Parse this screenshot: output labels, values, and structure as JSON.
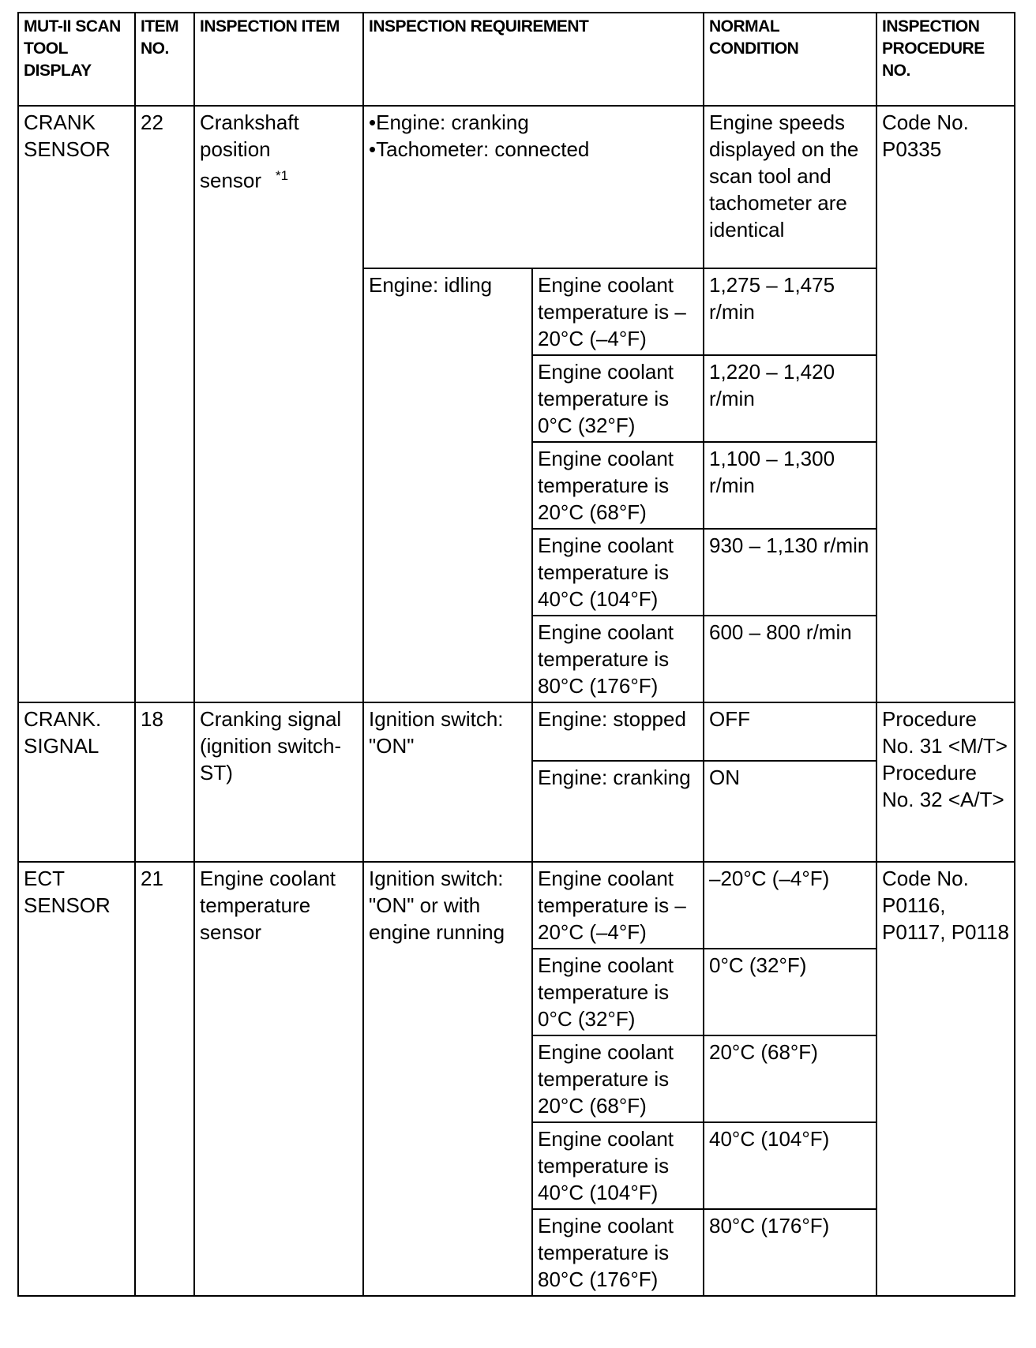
{
  "headers": {
    "display": "MUT-II SCAN TOOL DISPLAY",
    "item_no": "ITEM NO.",
    "item": "INSPECTION ITEM",
    "requirement": "INSPECTION REQUIREMENT",
    "normal": "NORMAL CONDITION",
    "procedure": "INSPECTION PROCEDURE NO."
  },
  "crank_sensor": {
    "display": "CRANK SENSOR",
    "item_no": "22",
    "item": "Crankshaft position sensor",
    "footnote": "*1",
    "req1": "•Engine: cranking",
    "req2": "•Tachometer: connected",
    "normal1": "Engine speeds displayed on the scan tool and tachometer are identical",
    "procedure": "Code No. P0335",
    "idle_req": "Engine: idling",
    "rows": [
      {
        "cond": "Engine coolant temperature is –20°C (–4°F)",
        "normal": "1,275 – 1,475 r/min"
      },
      {
        "cond": "Engine coolant temperature is 0°C (32°F)",
        "normal": "1,220 – 1,420 r/min"
      },
      {
        "cond": "Engine coolant temperature is 20°C (68°F)",
        "normal": "1,100 – 1,300 r/min"
      },
      {
        "cond": "Engine coolant temperature is 40°C (104°F)",
        "normal": "930 – 1,130 r/min"
      },
      {
        "cond": "Engine coolant temperature is 80°C (176°F)",
        "normal": "600 – 800 r/min"
      }
    ]
  },
  "crank_signal": {
    "display": "CRANK. SIGNAL",
    "item_no": "18",
    "item": "Cranking signal (ignition switch-ST)",
    "req": "Ignition switch: \"ON\"",
    "procedure": "Procedure No. 31 <M/T> Procedure No. 32 <A/T>",
    "rows": [
      {
        "cond": "Engine: stopped",
        "normal": "OFF"
      },
      {
        "cond": "Engine: cranking",
        "normal": "ON"
      }
    ]
  },
  "ect_sensor": {
    "display": "ECT SENSOR",
    "item_no": "21",
    "item": "Engine coolant temperature sensor",
    "req": "Ignition switch: \"ON\" or with engine running",
    "procedure": "Code No. P0116, P0117, P0118",
    "rows": [
      {
        "cond": "Engine coolant temperature is –20°C (–4°F)",
        "normal": "–20°C (–4°F)"
      },
      {
        "cond": "Engine coolant temperature is 0°C (32°F)",
        "normal": "0°C (32°F)"
      },
      {
        "cond": "Engine coolant temperature is 20°C (68°F)",
        "normal": "20°C (68°F)"
      },
      {
        "cond": "Engine coolant temperature is 40°C (104°F)",
        "normal": "40°C (104°F)"
      },
      {
        "cond": "Engine coolant temperature is 80°C (176°F)",
        "normal": "80°C (176°F)"
      }
    ]
  }
}
